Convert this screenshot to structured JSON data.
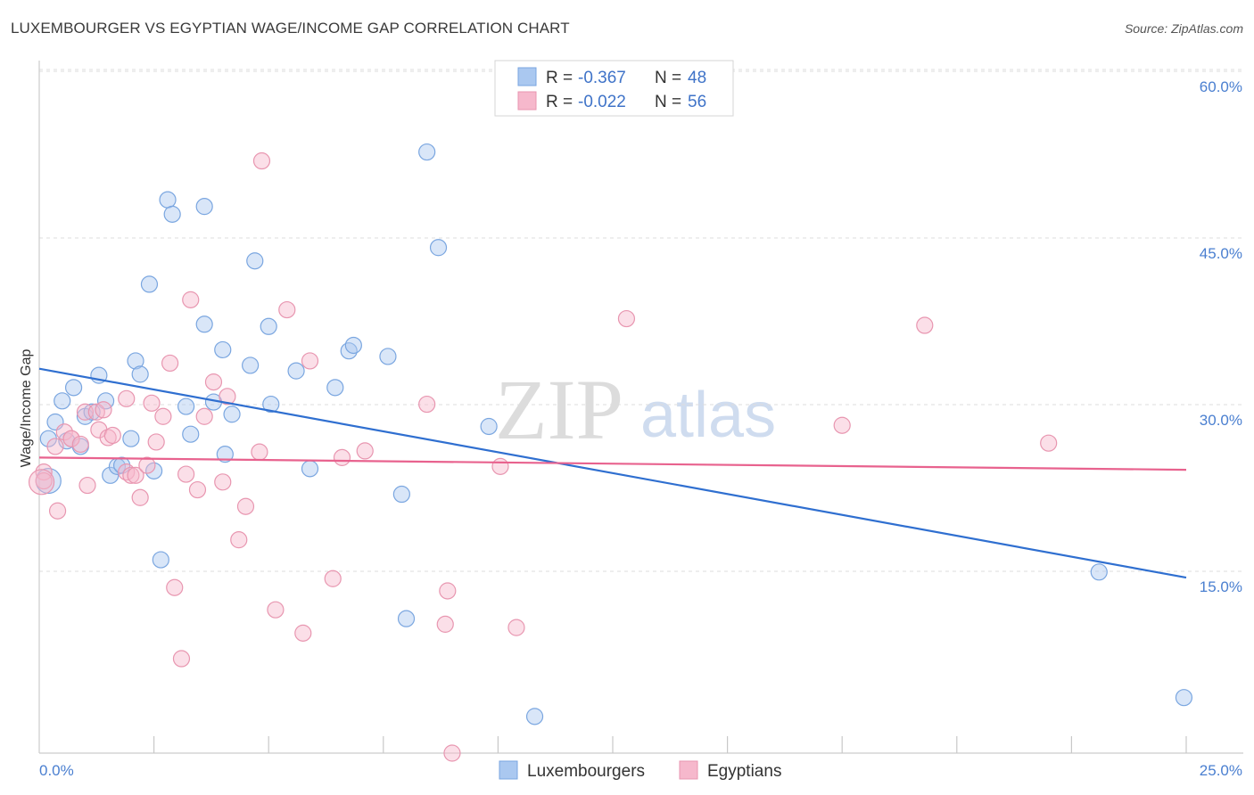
{
  "header": {
    "title": "LUXEMBOURGER VS EGYPTIAN WAGE/INCOME GAP CORRELATION CHART",
    "source": "Source: ZipAtlas.com"
  },
  "legend": {
    "rows": [
      {
        "r_label": "R =",
        "r_value": "-0.367",
        "n_label": "N =",
        "n_value": "48",
        "color": "#aac8f0"
      },
      {
        "r_label": "R =",
        "r_value": "-0.022",
        "n_label": "N =",
        "n_value": "56",
        "color": "#f6b8cc"
      }
    ]
  },
  "bottom_legend": {
    "items": [
      {
        "label": "Luxembourgers",
        "color": "#aac8f0"
      },
      {
        "label": "Egyptians",
        "color": "#f6b8cc"
      }
    ]
  },
  "watermark": {
    "zip": "ZIP",
    "atlas": "atlas"
  },
  "chart_data": {
    "type": "scatter",
    "xlabel": "",
    "ylabel": "Wage/Income Gap",
    "xlim": [
      0,
      25
    ],
    "ylim": [
      0,
      60
    ],
    "x_tick_labels": [
      {
        "value": 0,
        "label": "0.0%"
      },
      {
        "value": 25,
        "label": "25.0%"
      }
    ],
    "y_tick_labels": [
      {
        "value": 15,
        "label": "15.0%"
      },
      {
        "value": 30,
        "label": "30.0%"
      },
      {
        "value": 45,
        "label": "45.0%"
      },
      {
        "value": 60,
        "label": "60.0%"
      }
    ],
    "grid": true,
    "legend_position": "top-center",
    "series": [
      {
        "name": "Luxembourgers",
        "color": "#aac8f0",
        "stroke": "#7aa6e0",
        "line_color": "#2f6fd0",
        "trend": {
          "x": [
            0,
            25
          ],
          "y": [
            34.6,
            15.8
          ]
        },
        "points": [
          [
            0.2,
            24.5
          ],
          [
            0.2,
            28.3
          ],
          [
            0.35,
            29.8
          ],
          [
            0.5,
            31.7
          ],
          [
            0.6,
            28.1
          ],
          [
            0.75,
            32.9
          ],
          [
            0.9,
            27.6
          ],
          [
            1.0,
            30.3
          ],
          [
            1.15,
            30.7
          ],
          [
            1.3,
            34.0
          ],
          [
            1.45,
            31.7
          ],
          [
            1.55,
            25.0
          ],
          [
            1.7,
            25.8
          ],
          [
            1.8,
            25.9
          ],
          [
            2.0,
            28.3
          ],
          [
            2.1,
            35.3
          ],
          [
            2.2,
            34.1
          ],
          [
            2.4,
            42.2
          ],
          [
            2.5,
            25.4
          ],
          [
            2.65,
            17.4
          ],
          [
            2.8,
            49.8
          ],
          [
            2.9,
            48.5
          ],
          [
            3.2,
            31.2
          ],
          [
            3.3,
            28.7
          ],
          [
            3.6,
            49.2
          ],
          [
            3.6,
            38.6
          ],
          [
            3.8,
            31.6
          ],
          [
            4.0,
            36.3
          ],
          [
            4.05,
            26.9
          ],
          [
            4.2,
            30.5
          ],
          [
            4.6,
            34.9
          ],
          [
            4.7,
            44.3
          ],
          [
            5.0,
            38.4
          ],
          [
            5.05,
            31.4
          ],
          [
            5.6,
            34.4
          ],
          [
            5.9,
            25.6
          ],
          [
            6.45,
            32.9
          ],
          [
            6.75,
            36.2
          ],
          [
            6.85,
            36.7
          ],
          [
            7.6,
            35.7
          ],
          [
            7.9,
            23.3
          ],
          [
            8.0,
            12.1
          ],
          [
            8.45,
            54.1
          ],
          [
            8.7,
            45.5
          ],
          [
            9.8,
            29.4
          ],
          [
            10.8,
            3.3
          ],
          [
            23.1,
            16.3
          ],
          [
            24.95,
            5.0
          ]
        ]
      },
      {
        "name": "Egyptians",
        "color": "#f6b8cc",
        "stroke": "#e896b0",
        "line_color": "#e8628e",
        "trend": {
          "x": [
            0,
            25
          ],
          "y": [
            26.6,
            25.5
          ]
        },
        "points": [
          [
            0.1,
            25.3
          ],
          [
            0.1,
            24.5
          ],
          [
            0.35,
            27.6
          ],
          [
            0.4,
            21.8
          ],
          [
            0.55,
            28.9
          ],
          [
            0.7,
            28.3
          ],
          [
            0.7,
            28.3
          ],
          [
            0.9,
            27.8
          ],
          [
            1.0,
            30.7
          ],
          [
            1.05,
            24.1
          ],
          [
            1.25,
            30.7
          ],
          [
            1.3,
            29.1
          ],
          [
            1.4,
            30.9
          ],
          [
            1.5,
            28.4
          ],
          [
            1.6,
            28.6
          ],
          [
            1.9,
            25.3
          ],
          [
            1.9,
            31.9
          ],
          [
            2.0,
            25.0
          ],
          [
            2.1,
            25.0
          ],
          [
            2.2,
            23.0
          ],
          [
            2.35,
            25.9
          ],
          [
            2.45,
            31.5
          ],
          [
            2.55,
            28.0
          ],
          [
            2.7,
            30.3
          ],
          [
            2.85,
            35.1
          ],
          [
            2.95,
            14.9
          ],
          [
            3.1,
            8.5
          ],
          [
            3.2,
            25.1
          ],
          [
            3.3,
            40.8
          ],
          [
            3.45,
            23.7
          ],
          [
            3.6,
            30.3
          ],
          [
            3.8,
            33.4
          ],
          [
            4.0,
            24.4
          ],
          [
            4.1,
            32.1
          ],
          [
            4.35,
            19.2
          ],
          [
            4.5,
            22.2
          ],
          [
            4.8,
            27.1
          ],
          [
            4.85,
            53.3
          ],
          [
            5.15,
            12.9
          ],
          [
            5.4,
            39.9
          ],
          [
            5.75,
            10.8
          ],
          [
            5.9,
            35.3
          ],
          [
            6.4,
            15.7
          ],
          [
            6.6,
            26.6
          ],
          [
            7.1,
            27.2
          ],
          [
            8.45,
            31.4
          ],
          [
            8.85,
            11.6
          ],
          [
            8.9,
            14.6
          ],
          [
            9.0,
            0.0
          ],
          [
            10.05,
            25.8
          ],
          [
            10.4,
            11.3
          ],
          [
            12.8,
            39.1
          ],
          [
            17.5,
            29.5
          ],
          [
            19.3,
            38.5
          ],
          [
            22.0,
            27.9
          ],
          [
            0.05,
            24.4
          ]
        ]
      }
    ]
  }
}
